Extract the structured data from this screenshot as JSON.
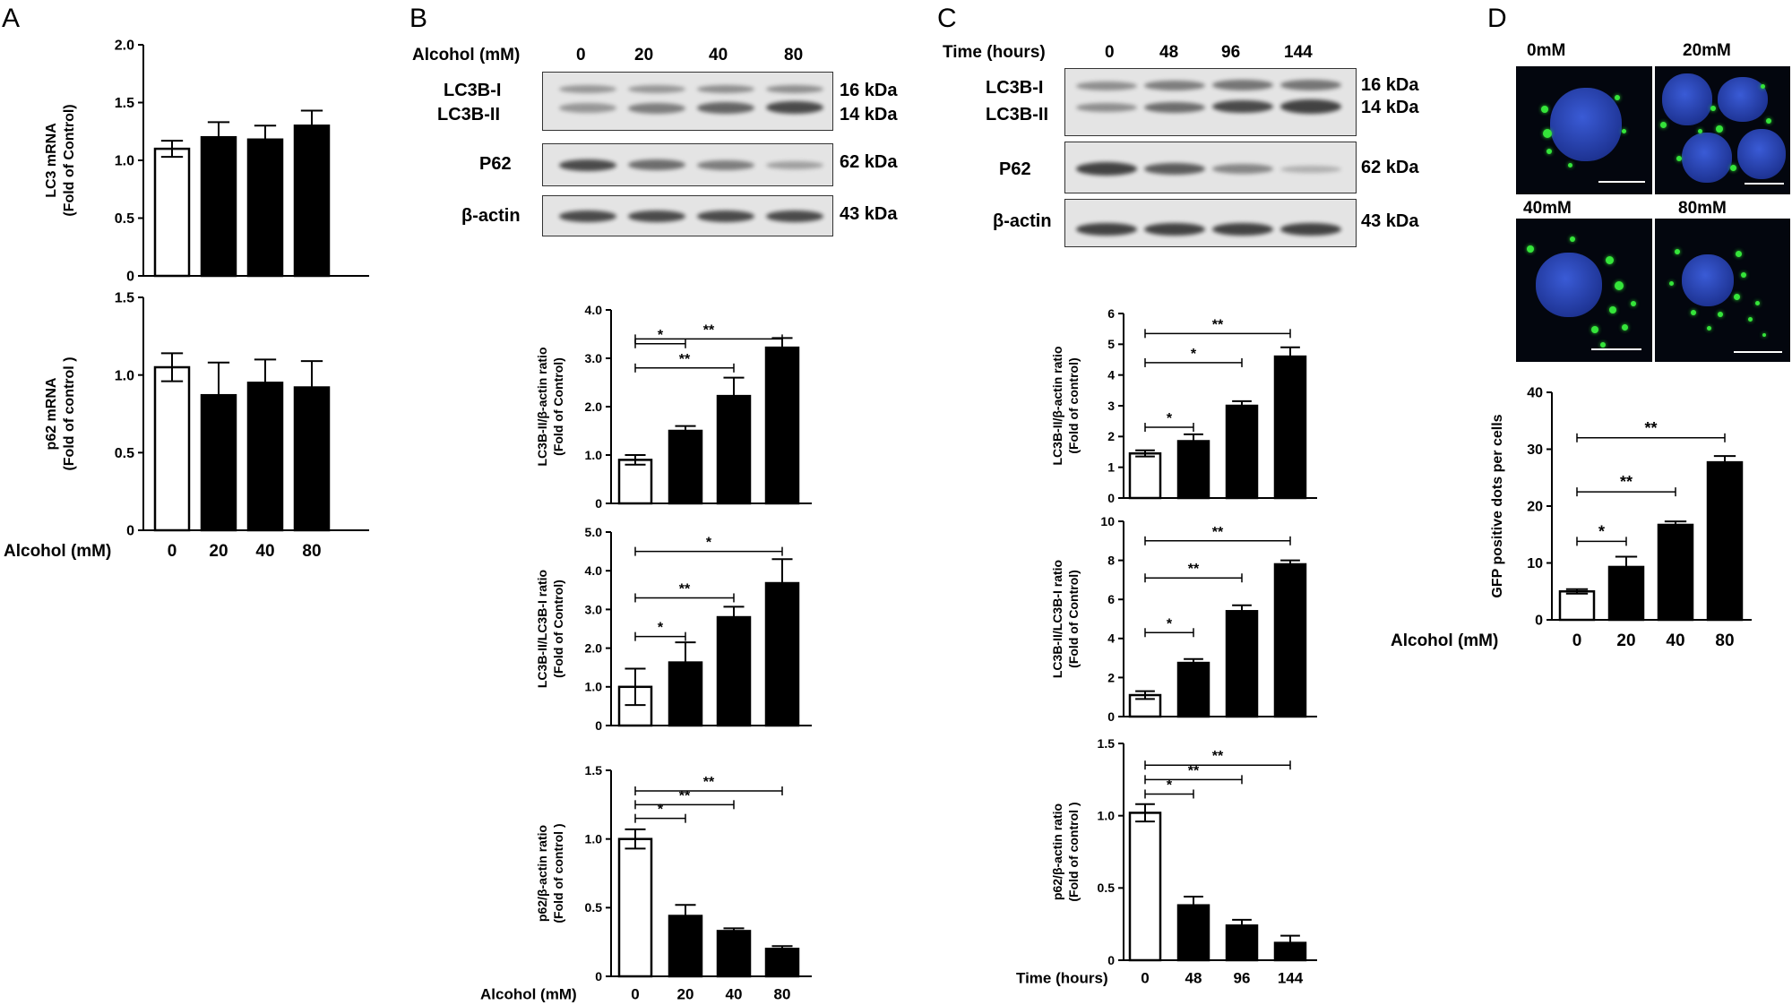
{
  "panels": {
    "A": "A",
    "B": "B",
    "C": "C",
    "D": "D"
  },
  "blots": {
    "B": {
      "header_label": "Alcohol (mM)",
      "lanes": [
        "0",
        "20",
        "40",
        "80"
      ],
      "rows": [
        "LC3B-I",
        "LC3B-II",
        "P62",
        "β-actin"
      ],
      "kda": [
        "16 kDa",
        "14 kDa",
        "62 kDa",
        "43 kDa"
      ]
    },
    "C": {
      "header_label": "Time (hours)",
      "lanes": [
        "0",
        "48",
        "96",
        "144"
      ],
      "rows": [
        "LC3B-I",
        "LC3B-II",
        "P62",
        "β-actin"
      ],
      "kda": [
        "16 kDa",
        "14 kDa",
        "62 kDa",
        "43 kDa"
      ]
    }
  },
  "micrographs": {
    "labels": [
      "0mM",
      "20mM",
      "40mM",
      "80mM"
    ]
  },
  "colors": {
    "bar_filled": "#000000",
    "bar_open": "#ffffff",
    "blot_bg": "#e4e4e4",
    "nucleus": "#2a45c0",
    "gfp": "#35e43a"
  },
  "chart_data": [
    {
      "id": "A1",
      "type": "bar",
      "categories": [
        "0",
        "20",
        "40",
        "80"
      ],
      "values": [
        1.1,
        1.2,
        1.18,
        1.3
      ],
      "errors": [
        0.07,
        0.13,
        0.12,
        0.13
      ],
      "open_first": true,
      "ylabel": [
        "LC3 mRNA",
        "(Fold of Control)"
      ],
      "ylim": [
        0,
        2.0
      ],
      "yticks": [
        "0",
        "0.5",
        "1.0",
        "1.5",
        "2.0"
      ],
      "show_xticks": false,
      "significance": []
    },
    {
      "id": "A2",
      "type": "bar",
      "categories": [
        "0",
        "20",
        "40",
        "80"
      ],
      "values": [
        1.05,
        0.87,
        0.95,
        0.92
      ],
      "errors": [
        0.09,
        0.21,
        0.15,
        0.17
      ],
      "open_first": true,
      "ylabel": [
        "p62 mRNA",
        "(Fold of control )"
      ],
      "ylim": [
        0,
        1.5
      ],
      "yticks": [
        "0",
        "0.5",
        "1.0",
        "1.5"
      ],
      "show_xticks": true,
      "xlabel": "Alcohol (mM)",
      "significance": []
    },
    {
      "id": "B1",
      "type": "bar",
      "categories": [
        "0",
        "20",
        "40",
        "80"
      ],
      "values": [
        0.9,
        1.5,
        2.22,
        3.22
      ],
      "errors": [
        0.1,
        0.1,
        0.38,
        0.2
      ],
      "open_first": true,
      "ylabel": [
        "LC3B-II/β-actin ratio",
        "(Fold of Control)"
      ],
      "ylim": [
        0,
        4.0
      ],
      "yticks": [
        "0",
        "1.0",
        "2.0",
        "3.0",
        "4.0"
      ],
      "show_xticks": false,
      "significance": [
        {
          "from": 0,
          "to": 1,
          "level": 3.3,
          "text": "*"
        },
        {
          "from": 0,
          "to": 2,
          "level": 2.8,
          "text": "**"
        },
        {
          "from": 0,
          "to": 3,
          "level": 3.4,
          "text": "**"
        }
      ]
    },
    {
      "id": "B2",
      "type": "bar",
      "categories": [
        "0",
        "20",
        "40",
        "80"
      ],
      "values": [
        1.0,
        1.63,
        2.8,
        3.68
      ],
      "errors": [
        0.47,
        0.52,
        0.27,
        0.62
      ],
      "open_first": true,
      "ylabel": [
        "LC3B-II/LC3B-I ratio",
        "(Fold of Control)"
      ],
      "ylim": [
        0,
        5.0
      ],
      "yticks": [
        "0",
        "1.0",
        "2.0",
        "3.0",
        "4.0",
        "5.0"
      ],
      "show_xticks": false,
      "significance": [
        {
          "from": 0,
          "to": 1,
          "level": 2.3,
          "text": "*"
        },
        {
          "from": 0,
          "to": 2,
          "level": 3.3,
          "text": "**"
        },
        {
          "from": 0,
          "to": 3,
          "level": 4.5,
          "text": "*"
        }
      ]
    },
    {
      "id": "B3",
      "type": "bar",
      "categories": [
        "0",
        "20",
        "40",
        "80"
      ],
      "values": [
        1.0,
        0.44,
        0.33,
        0.2
      ],
      "errors": [
        0.07,
        0.08,
        0.02,
        0.02
      ],
      "open_first": true,
      "ylabel": [
        "p62/β-actin ratio",
        "(Fold of control )"
      ],
      "ylim": [
        0,
        1.5
      ],
      "yticks": [
        "0",
        "0.5",
        "1.0",
        "1.5"
      ],
      "show_xticks": true,
      "xlabel": "Alcohol (mM)",
      "significance": [
        {
          "from": 0,
          "to": 1,
          "level": 1.15,
          "text": "*"
        },
        {
          "from": 0,
          "to": 2,
          "level": 1.25,
          "text": "**"
        },
        {
          "from": 0,
          "to": 3,
          "level": 1.35,
          "text": "**"
        }
      ]
    },
    {
      "id": "C1",
      "type": "bar",
      "categories": [
        "0",
        "48",
        "96",
        "144"
      ],
      "values": [
        1.45,
        1.85,
        3.0,
        4.6
      ],
      "errors": [
        0.1,
        0.22,
        0.15,
        0.3
      ],
      "open_first": true,
      "ylabel": [
        "LC3B-II/β-actin ratio",
        "(Fold of control)"
      ],
      "ylim": [
        0,
        6
      ],
      "yticks": [
        "0",
        "1",
        "2",
        "3",
        "4",
        "5",
        "6"
      ],
      "show_xticks": false,
      "significance": [
        {
          "from": 0,
          "to": 1,
          "level": 2.3,
          "text": "*"
        },
        {
          "from": 0,
          "to": 2,
          "level": 4.4,
          "text": "*"
        },
        {
          "from": 0,
          "to": 3,
          "level": 5.35,
          "text": "**"
        }
      ]
    },
    {
      "id": "C2",
      "type": "bar",
      "categories": [
        "0",
        "48",
        "96",
        "144"
      ],
      "values": [
        1.1,
        2.75,
        5.4,
        7.8
      ],
      "errors": [
        0.2,
        0.2,
        0.3,
        0.2
      ],
      "open_first": true,
      "ylabel": [
        "LC3B-II/LC3B-I ratio",
        "(Fold of Control)"
      ],
      "ylim": [
        0,
        10
      ],
      "yticks": [
        "0",
        "2",
        "4",
        "6",
        "8",
        "10"
      ],
      "show_xticks": false,
      "significance": [
        {
          "from": 0,
          "to": 1,
          "level": 4.3,
          "text": "*"
        },
        {
          "from": 0,
          "to": 2,
          "level": 7.1,
          "text": "**"
        },
        {
          "from": 0,
          "to": 3,
          "level": 9.0,
          "text": "**"
        }
      ]
    },
    {
      "id": "C3",
      "type": "bar",
      "categories": [
        "0",
        "48",
        "96",
        "144"
      ],
      "values": [
        1.02,
        0.38,
        0.24,
        0.12
      ],
      "errors": [
        0.06,
        0.06,
        0.04,
        0.05
      ],
      "open_first": true,
      "ylabel": [
        "p62/β-actin ratio",
        "(Fold of control )"
      ],
      "ylim": [
        0,
        1.5
      ],
      "yticks": [
        "0",
        "0.5",
        "1.0",
        "1.5"
      ],
      "show_xticks": true,
      "xlabel": "Time (hours)",
      "significance": [
        {
          "from": 0,
          "to": 1,
          "level": 1.15,
          "text": "*"
        },
        {
          "from": 0,
          "to": 2,
          "level": 1.25,
          "text": "**"
        },
        {
          "from": 0,
          "to": 3,
          "level": 1.35,
          "text": "**"
        }
      ]
    },
    {
      "id": "D1",
      "type": "bar",
      "categories": [
        "0",
        "20",
        "40",
        "80"
      ],
      "values": [
        5.0,
        9.3,
        16.7,
        27.7
      ],
      "errors": [
        0.4,
        1.8,
        0.6,
        1.1
      ],
      "open_first": true,
      "ylabel": [
        "GFP positive dots per cells"
      ],
      "ylim": [
        0,
        40
      ],
      "yticks": [
        "0",
        "10",
        "20",
        "30",
        "40"
      ],
      "show_xticks": true,
      "xlabel": "Alcohol (mM)",
      "significance": [
        {
          "from": 0,
          "to": 1,
          "level": 13.8,
          "text": "*"
        },
        {
          "from": 0,
          "to": 2,
          "level": 22.5,
          "text": "**"
        },
        {
          "from": 0,
          "to": 3,
          "level": 32.0,
          "text": "**"
        }
      ]
    }
  ]
}
